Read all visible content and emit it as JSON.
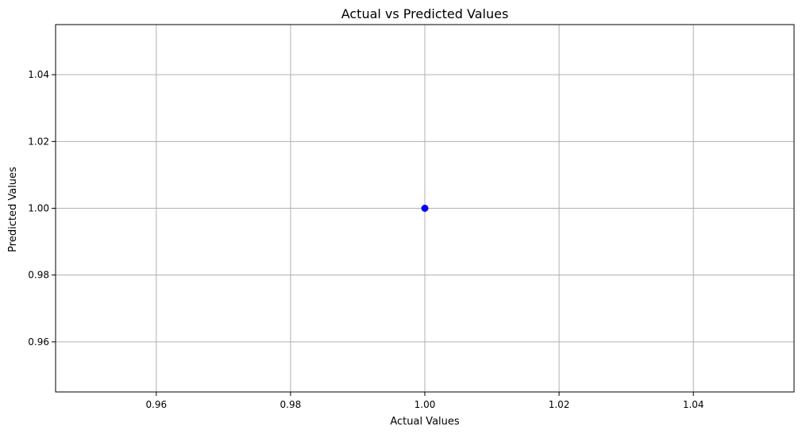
{
  "chart_data": {
    "type": "scatter",
    "title": "Actual vs Predicted Values",
    "xlabel": "Actual Values",
    "ylabel": "Predicted Values",
    "xlim": [
      0.945,
      1.055
    ],
    "ylim": [
      0.945,
      1.055
    ],
    "x_ticks": [
      0.96,
      0.98,
      1.0,
      1.02,
      1.04
    ],
    "x_tick_labels": [
      "0.96",
      "0.98",
      "1.00",
      "1.02",
      "1.04"
    ],
    "y_ticks": [
      0.96,
      0.98,
      1.0,
      1.02,
      1.04
    ],
    "y_tick_labels": [
      "0.96",
      "0.98",
      "1.00",
      "1.02",
      "1.04"
    ],
    "grid": true,
    "series": [
      {
        "x": [
          1.0
        ],
        "y": [
          1.0
        ],
        "color": "#0000ff"
      }
    ]
  }
}
